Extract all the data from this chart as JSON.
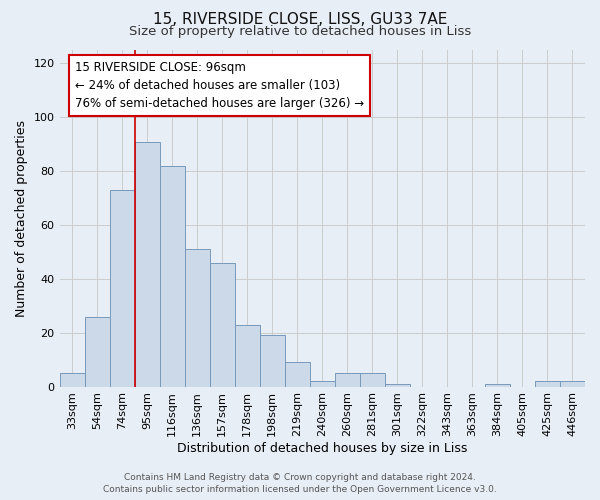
{
  "title": "15, RIVERSIDE CLOSE, LISS, GU33 7AE",
  "subtitle": "Size of property relative to detached houses in Liss",
  "xlabel": "Distribution of detached houses by size in Liss",
  "ylabel": "Number of detached properties",
  "footer_line1": "Contains HM Land Registry data © Crown copyright and database right 2024.",
  "footer_line2": "Contains public sector information licensed under the Open Government Licence v3.0.",
  "bar_labels": [
    "33sqm",
    "54sqm",
    "74sqm",
    "95sqm",
    "116sqm",
    "136sqm",
    "157sqm",
    "178sqm",
    "198sqm",
    "219sqm",
    "240sqm",
    "260sqm",
    "281sqm",
    "301sqm",
    "322sqm",
    "343sqm",
    "363sqm",
    "384sqm",
    "405sqm",
    "425sqm",
    "446sqm"
  ],
  "bar_values": [
    5,
    26,
    73,
    91,
    82,
    51,
    46,
    23,
    19,
    9,
    2,
    5,
    5,
    1,
    0,
    0,
    0,
    1,
    0,
    2,
    2
  ],
  "bar_color": "#ccd9e8",
  "bar_edge_color": "#7799bb",
  "property_line_index": 3,
  "property_label": "15 RIVERSIDE CLOSE: 96sqm",
  "annotation_line1": "← 24% of detached houses are smaller (103)",
  "annotation_line2": "76% of semi-detached houses are larger (326) →",
  "annotation_box_color": "#ffffff",
  "annotation_box_edge": "#cc0000",
  "vline_color": "#cc0000",
  "ylim": [
    0,
    125
  ],
  "yticks": [
    0,
    20,
    40,
    60,
    80,
    100,
    120
  ],
  "grid_color": "#cccccc",
  "bg_color": "#e8eef5",
  "title_fontsize": 11,
  "subtitle_fontsize": 9.5,
  "axis_label_fontsize": 9,
  "tick_fontsize": 8,
  "annotation_fontsize": 8.5,
  "footer_fontsize": 6.5
}
